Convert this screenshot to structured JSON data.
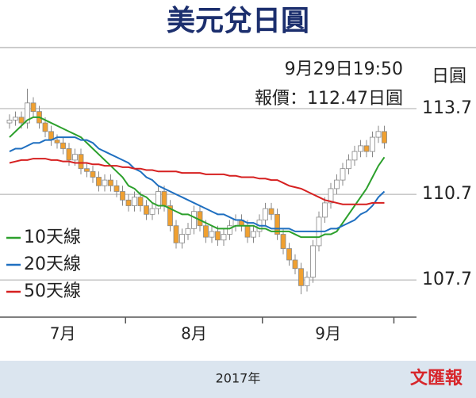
{
  "chart_data": {
    "type": "candlestick",
    "title": "美元兌日圓",
    "annotations": [
      "9月29日19:50",
      "報價：112.47日圓"
    ],
    "y_unit": "日圓",
    "xlabel": "2017年",
    "source": "文匯報",
    "months": [
      "7月",
      "8月",
      "9月"
    ],
    "up_color": "#ffffff",
    "down_color": "#f0a030",
    "candle_edge": "#888888",
    "open": [
      113.2,
      113.3,
      113.4,
      113.2,
      113.9,
      113.6,
      113.2,
      112.9,
      112.6,
      112.5,
      112.3,
      111.9,
      112.1,
      111.6,
      111.5,
      111.3,
      111.0,
      111.2,
      111.0,
      110.8,
      110.5,
      110.3,
      110.6,
      110.3,
      110.0,
      110.2,
      110.8,
      110.3,
      109.6,
      109.0,
      109.3,
      109.5,
      110.1,
      109.6,
      109.2,
      109.4,
      109.1,
      109.3,
      109.6,
      109.8,
      109.6,
      109.2,
      109.4,
      109.8,
      110.2,
      110.0,
      109.3,
      108.8,
      108.4,
      108.1,
      107.5,
      107.8,
      108.9,
      109.9,
      110.4,
      110.9,
      111.2,
      111.6,
      111.9,
      112.2,
      112.4,
      112.2,
      112.7,
      112.9
    ],
    "high": [
      113.5,
      113.6,
      113.6,
      114.4,
      114.1,
      113.8,
      113.4,
      113.1,
      112.8,
      112.7,
      112.5,
      112.3,
      112.3,
      111.8,
      111.7,
      111.5,
      111.4,
      111.4,
      111.2,
      111.0,
      110.7,
      110.8,
      110.8,
      110.5,
      110.4,
      111.0,
      111.0,
      110.5,
      109.8,
      109.5,
      109.7,
      110.3,
      110.3,
      109.8,
      109.6,
      109.6,
      109.5,
      109.8,
      110.0,
      110.0,
      109.8,
      109.6,
      110.0,
      110.4,
      110.4,
      110.2,
      109.5,
      109.0,
      108.6,
      108.3,
      108.0,
      109.1,
      110.1,
      110.6,
      111.1,
      111.4,
      111.8,
      112.1,
      112.4,
      112.6,
      112.6,
      112.9,
      113.1,
      113.1
    ],
    "low": [
      113.0,
      113.1,
      113.0,
      113.0,
      113.4,
      113.0,
      112.7,
      112.4,
      112.3,
      112.1,
      111.7,
      111.7,
      111.4,
      111.3,
      111.1,
      110.8,
      110.8,
      110.8,
      110.6,
      110.3,
      110.1,
      110.1,
      110.1,
      109.8,
      109.8,
      110.0,
      110.1,
      109.4,
      108.8,
      108.8,
      109.1,
      109.3,
      109.4,
      109.0,
      109.0,
      108.9,
      108.9,
      109.1,
      109.4,
      109.4,
      109.0,
      109.0,
      109.2,
      109.6,
      109.8,
      109.1,
      108.6,
      108.2,
      107.9,
      107.2,
      107.3,
      107.6,
      108.7,
      109.7,
      110.2,
      110.7,
      111.0,
      111.4,
      111.7,
      112.0,
      112.0,
      112.0,
      112.5,
      112.3
    ],
    "close": [
      113.3,
      113.4,
      113.2,
      113.9,
      113.6,
      113.2,
      112.9,
      112.6,
      112.5,
      112.3,
      111.9,
      112.1,
      111.6,
      111.5,
      111.3,
      111.0,
      111.2,
      111.0,
      110.8,
      110.5,
      110.3,
      110.6,
      110.3,
      110.0,
      110.2,
      110.8,
      110.3,
      109.6,
      109.0,
      109.3,
      109.5,
      110.1,
      109.6,
      109.2,
      109.4,
      109.1,
      109.3,
      109.6,
      109.8,
      109.6,
      109.2,
      109.4,
      109.8,
      110.2,
      110.0,
      109.3,
      108.8,
      108.4,
      108.1,
      107.5,
      107.8,
      108.9,
      109.9,
      110.4,
      110.9,
      111.2,
      111.6,
      111.9,
      112.2,
      112.4,
      112.2,
      112.7,
      112.9,
      112.5
    ],
    "series": [
      {
        "name": "10天線",
        "color": "#2ca02c",
        "values": [
          112.7,
          112.9,
          113.1,
          113.3,
          113.4,
          113.4,
          113.3,
          113.2,
          113.1,
          113.0,
          112.9,
          112.8,
          112.7,
          112.5,
          112.3,
          112.1,
          111.9,
          111.7,
          111.5,
          111.3,
          111.0,
          110.9,
          110.7,
          110.6,
          110.4,
          110.3,
          110.3,
          110.2,
          110.1,
          110.0,
          110.0,
          109.9,
          109.8,
          109.7,
          109.6,
          109.5,
          109.5,
          109.5,
          109.6,
          109.6,
          109.6,
          109.6,
          109.5,
          109.5,
          109.4,
          109.4,
          109.4,
          109.4,
          109.3,
          109.2,
          109.2,
          109.2,
          109.2,
          109.3,
          109.3,
          109.4,
          109.7,
          110.0,
          110.3,
          110.6,
          110.9,
          111.3,
          111.7,
          112.0
        ]
      },
      {
        "name": "20天線",
        "color": "#1f6fc0",
        "values": [
          112.2,
          112.3,
          112.3,
          112.4,
          112.5,
          112.5,
          112.6,
          112.6,
          112.7,
          112.7,
          112.7,
          112.7,
          112.6,
          112.6,
          112.5,
          112.3,
          112.2,
          112.1,
          112.0,
          111.9,
          111.8,
          111.6,
          111.5,
          111.3,
          111.2,
          111.0,
          110.9,
          110.8,
          110.7,
          110.6,
          110.5,
          110.4,
          110.3,
          110.2,
          110.1,
          110.0,
          110.0,
          109.9,
          109.8,
          109.8,
          109.7,
          109.7,
          109.6,
          109.6,
          109.5,
          109.5,
          109.5,
          109.5,
          109.4,
          109.4,
          109.4,
          109.4,
          109.4,
          109.4,
          109.5,
          109.5,
          109.6,
          109.7,
          109.8,
          110.0,
          110.1,
          110.3,
          110.6,
          110.8
        ]
      },
      {
        "name": "50天線",
        "color": "#d62020",
        "values": [
          111.8,
          111.85,
          111.9,
          111.9,
          111.95,
          111.95,
          111.95,
          111.9,
          111.9,
          111.85,
          111.85,
          111.8,
          111.8,
          111.8,
          111.75,
          111.75,
          111.7,
          111.7,
          111.7,
          111.65,
          111.65,
          111.6,
          111.6,
          111.55,
          111.55,
          111.5,
          111.5,
          111.5,
          111.5,
          111.45,
          111.45,
          111.45,
          111.45,
          111.4,
          111.4,
          111.4,
          111.4,
          111.35,
          111.35,
          111.3,
          111.3,
          111.3,
          111.25,
          111.25,
          111.2,
          111.2,
          111.1,
          111.0,
          110.95,
          110.9,
          110.8,
          110.7,
          110.6,
          110.5,
          110.45,
          110.4,
          110.35,
          110.35,
          110.35,
          110.35,
          110.35,
          110.4,
          110.4,
          110.4
        ]
      }
    ],
    "ylim": [
      106.4,
      115.7
    ],
    "yticks": [
      107.7,
      110.7,
      113.7
    ],
    "grid": true,
    "legend": "left"
  }
}
